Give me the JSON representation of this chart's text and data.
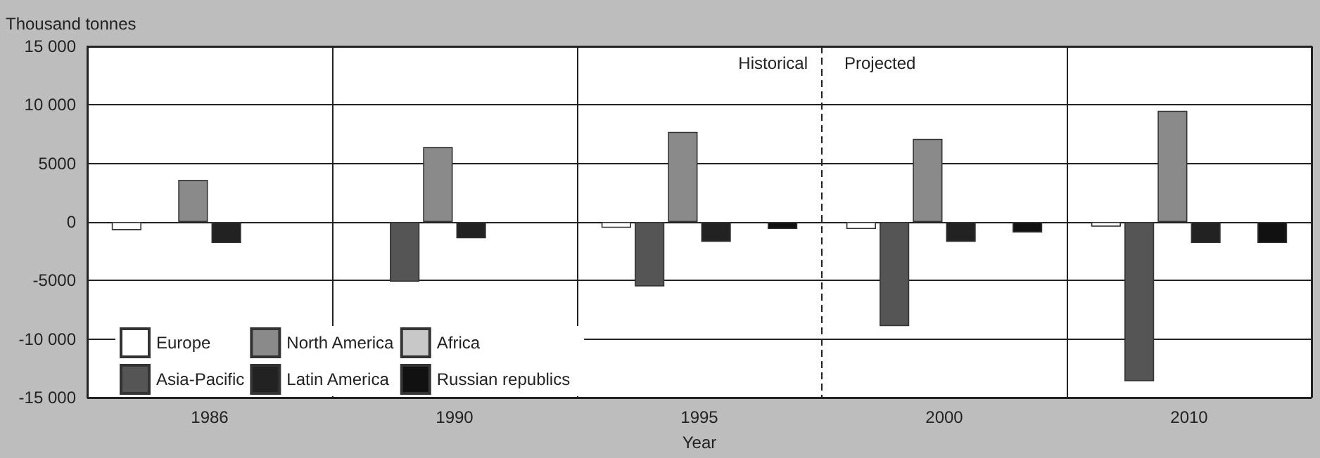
{
  "chart_data": {
    "type": "bar",
    "ylabel": "Thousand tonnes",
    "xlabel": "Year",
    "categories": [
      "1986",
      "1990",
      "1995",
      "2000",
      "2010"
    ],
    "series": [
      {
        "name": "Europe",
        "color": "#ffffff",
        "values": [
          -700,
          null,
          -500,
          -600,
          -400
        ]
      },
      {
        "name": "Asia-Pacific",
        "color": "#555555",
        "values": [
          null,
          -5100,
          -5500,
          -8900,
          -13600
        ]
      },
      {
        "name": "North America",
        "color": "#8a8a8a",
        "values": [
          3600,
          6400,
          7700,
          7100,
          9500
        ]
      },
      {
        "name": "Latin America",
        "color": "#222222",
        "values": [
          -1800,
          -1400,
          -1700,
          -1700,
          -1800
        ]
      },
      {
        "name": "Africa",
        "color": "#c8c8c8",
        "values": [
          null,
          null,
          null,
          null,
          null
        ]
      },
      {
        "name": "Russian republics",
        "color": "#111111",
        "values": [
          null,
          null,
          -600,
          -900,
          -1800
        ]
      }
    ],
    "ylim": [
      -15000,
      15000
    ],
    "yticks": [
      {
        "value": -15000,
        "label": "-15 000"
      },
      {
        "value": -10000,
        "label": "-10 000"
      },
      -5000,
      0,
      5000,
      {
        "value": 10000,
        "label": "10 000"
      },
      {
        "value": 15000,
        "label": "15 000"
      }
    ],
    "ref_lines": [
      {
        "axis": "x",
        "value": "2000",
        "line_style": "dashed"
      }
    ],
    "annotations": [
      "Historical",
      "Projected"
    ],
    "grid": true,
    "legend": "bottom left"
  }
}
